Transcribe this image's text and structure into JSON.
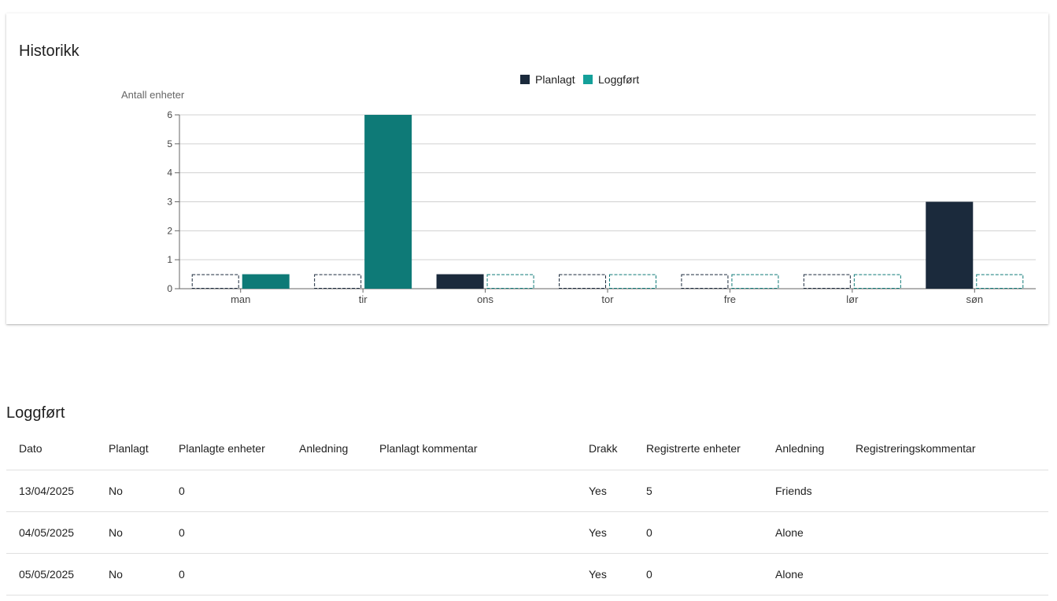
{
  "history": {
    "title": "Historikk"
  },
  "chart_data": {
    "type": "bar",
    "ylabel": "Antall enheter",
    "xlabel": "",
    "ylim": [
      0,
      6
    ],
    "yticks": [
      0,
      1,
      2,
      3,
      4,
      5,
      6
    ],
    "categories": [
      "man",
      "tir",
      "ons",
      "tor",
      "fre",
      "lør",
      "søn"
    ],
    "legend_position": "top-center",
    "grid": true,
    "series": [
      {
        "name": "Planlagt",
        "color": "#1b2a3c",
        "values": [
          0,
          0,
          0.5,
          0,
          0,
          0,
          3
        ]
      },
      {
        "name": "Loggført",
        "color": "#0e7a77",
        "legend_color": "#14a09a",
        "values": [
          0.5,
          6,
          0,
          0,
          0,
          0,
          0
        ]
      }
    ]
  },
  "log_section": {
    "title": "Loggført",
    "columns": [
      "Dato",
      "Planlagt",
      "Planlagte enheter",
      "Anledning",
      "Planlagt kommentar",
      "Drakk",
      "Registrerte enheter",
      "Anledning",
      "Registreringskommentar"
    ],
    "rows": [
      [
        "13/04/2025",
        "No",
        "0",
        "",
        "",
        "Yes",
        "5",
        "Friends",
        ""
      ],
      [
        "04/05/2025",
        "No",
        "0",
        "",
        "",
        "Yes",
        "0",
        "Alone",
        ""
      ],
      [
        "05/05/2025",
        "No",
        "0",
        "",
        "",
        "Yes",
        "0",
        "Alone",
        ""
      ]
    ]
  }
}
